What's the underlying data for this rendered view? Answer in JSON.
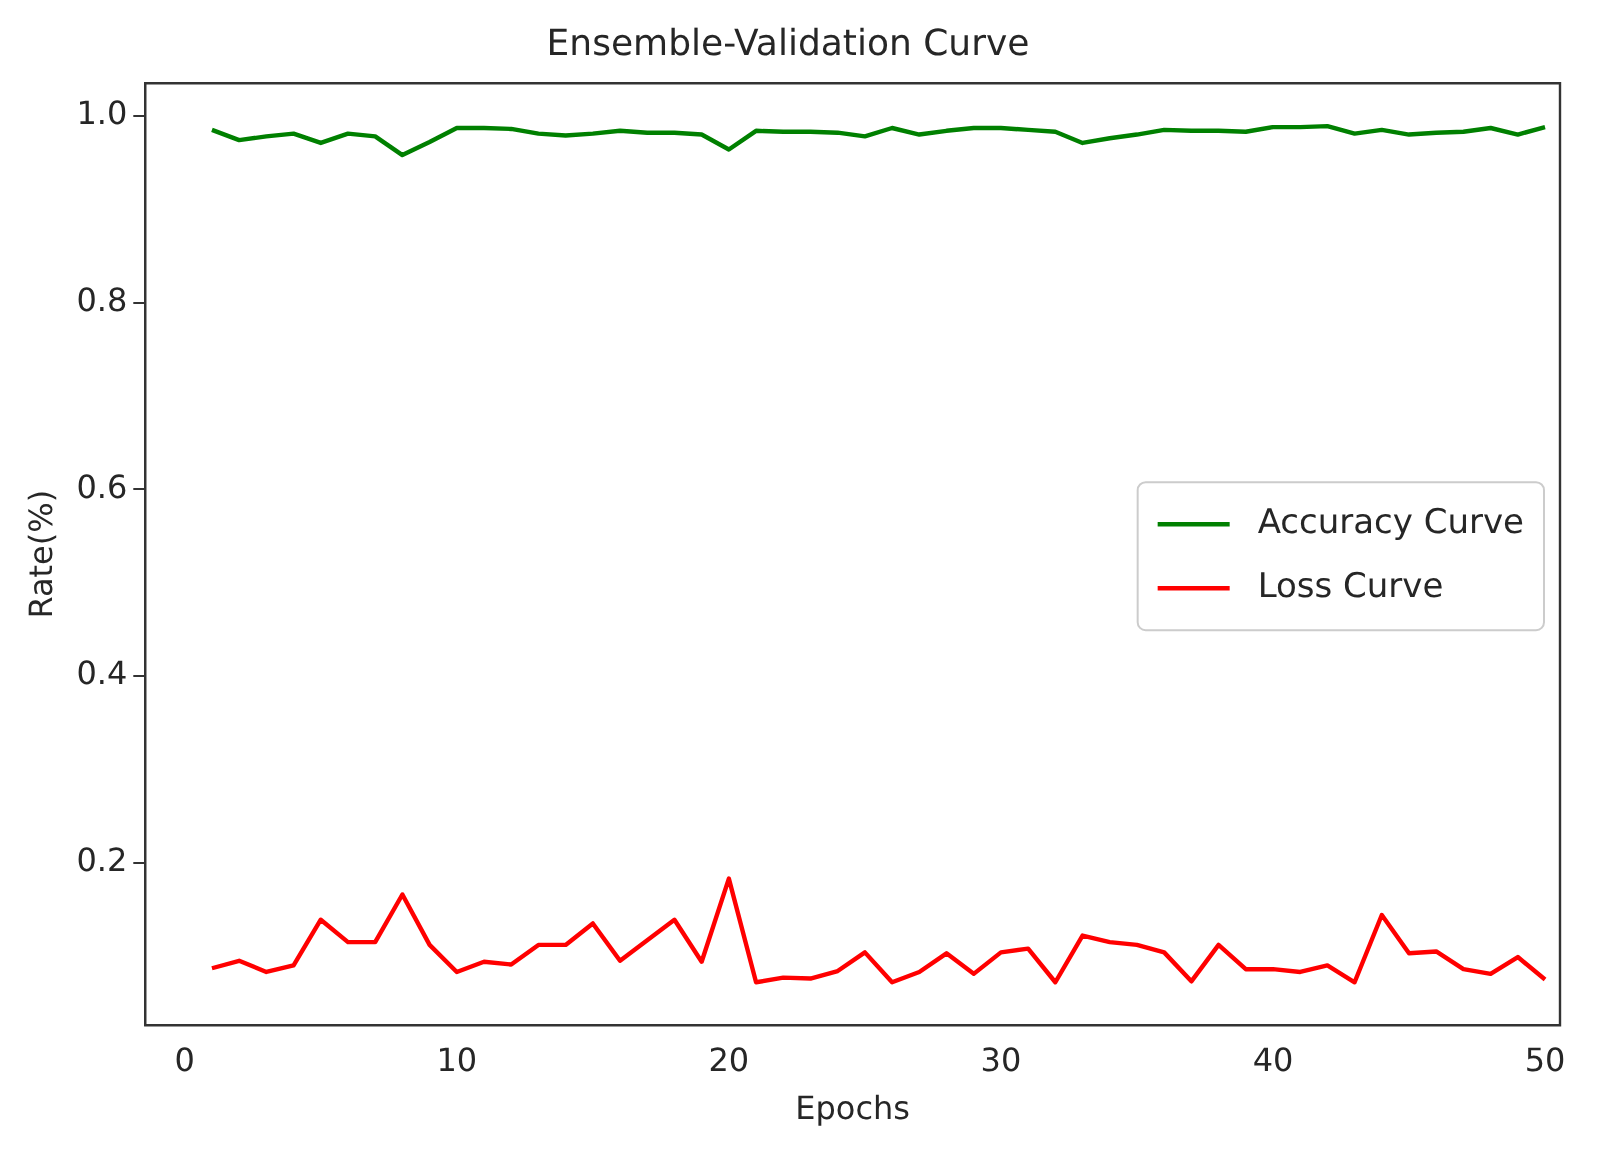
{
  "chart_data": {
    "type": "line",
    "title": "Ensemble-Validation Curve",
    "xlabel": "Epochs",
    "ylabel": "Rate(%)",
    "x": [
      1,
      2,
      3,
      4,
      5,
      6,
      7,
      8,
      9,
      10,
      11,
      12,
      13,
      14,
      15,
      16,
      17,
      18,
      19,
      20,
      21,
      22,
      23,
      24,
      25,
      26,
      27,
      28,
      29,
      30,
      31,
      32,
      33,
      34,
      35,
      36,
      37,
      38,
      39,
      40,
      41,
      42,
      43,
      44,
      45,
      46,
      47,
      48,
      49,
      50
    ],
    "series": [
      {
        "name": "Accuracy Curve",
        "color": "#008000",
        "values": [
          0.985,
          0.974,
          0.978,
          0.981,
          0.971,
          0.981,
          0.978,
          0.958,
          0.972,
          0.987,
          0.987,
          0.986,
          0.981,
          0.979,
          0.981,
          0.984,
          0.982,
          0.982,
          0.98,
          0.964,
          0.984,
          0.983,
          0.983,
          0.982,
          0.978,
          0.987,
          0.98,
          0.984,
          0.987,
          0.987,
          0.985,
          0.983,
          0.971,
          0.976,
          0.98,
          0.985,
          0.984,
          0.984,
          0.983,
          0.988,
          0.988,
          0.989,
          0.981,
          0.985,
          0.98,
          0.982,
          0.983,
          0.987,
          0.98,
          0.988
        ]
      },
      {
        "name": "Loss Curve",
        "color": "#ff0000",
        "values": [
          0.087,
          0.095,
          0.083,
          0.09,
          0.139,
          0.115,
          0.115,
          0.166,
          0.112,
          0.083,
          0.094,
          0.091,
          0.112,
          0.112,
          0.135,
          0.095,
          0.117,
          0.139,
          0.094,
          0.183,
          0.072,
          0.077,
          0.076,
          0.084,
          0.104,
          0.072,
          0.083,
          0.103,
          0.081,
          0.104,
          0.108,
          0.072,
          0.122,
          0.115,
          0.112,
          0.104,
          0.073,
          0.112,
          0.086,
          0.086,
          0.083,
          0.09,
          0.072,
          0.144,
          0.103,
          0.105,
          0.086,
          0.081,
          0.099,
          0.075
        ]
      }
    ],
    "xlim": [
      -1.45,
      50.55
    ],
    "xticks": [
      0,
      10,
      20,
      30,
      40,
      50
    ],
    "ylim": [
      0.026,
      1.035
    ],
    "yticks": [
      {
        "value": 0.2,
        "label": "0.2"
      },
      {
        "value": 0.4,
        "label": "0.4"
      },
      {
        "value": 0.6,
        "label": "0.6"
      },
      {
        "value": 0.8,
        "label": "0.8"
      },
      {
        "value": 1.0,
        "label": "1.0"
      }
    ],
    "legend": "center right",
    "grid": false,
    "marker": "none",
    "line_style": "solid"
  }
}
